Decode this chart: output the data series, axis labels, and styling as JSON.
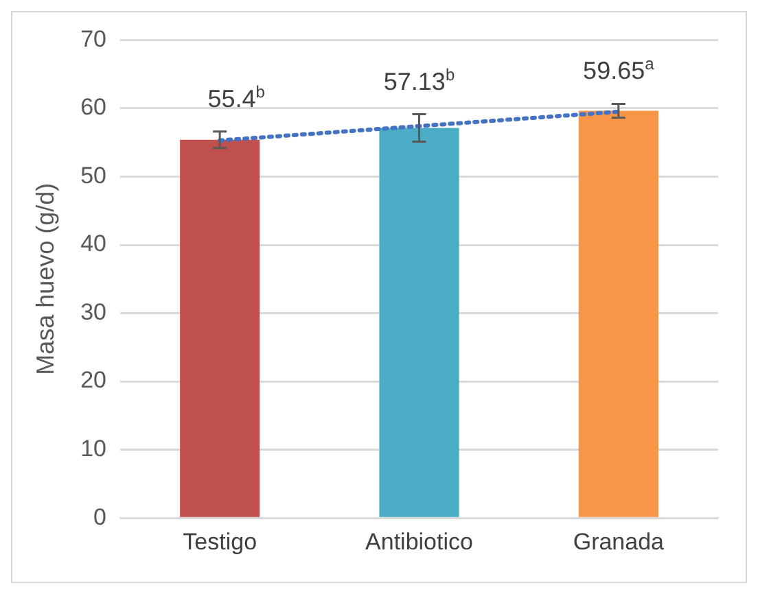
{
  "chart_data": {
    "type": "bar",
    "ylabel": "Masa huevo (g/d)",
    "categories": [
      "Testigo",
      "Antibiotico",
      "Granada"
    ],
    "series": [
      {
        "colors": [
          "#c0504d",
          "#4bacc6",
          "#f79646"
        ],
        "values": [
          55.4,
          57.13,
          59.65
        ],
        "errors": [
          1.2,
          2,
          1
        ],
        "value_labels": [
          "55.4$^{b}$",
          "57.13$^{b}$",
          "59.65$^{a}$"
        ]
      },
      {
        "type": "line",
        "color": "#4472c4",
        "values": [
          55.3,
          57.4,
          59.5
        ],
        "line_style": "dotted"
      }
    ],
    "ylim": [
      0,
      70
    ],
    "yticks": [
      0,
      10,
      20,
      30,
      40,
      50,
      60,
      70
    ],
    "grid": "y",
    "legend": false
  }
}
